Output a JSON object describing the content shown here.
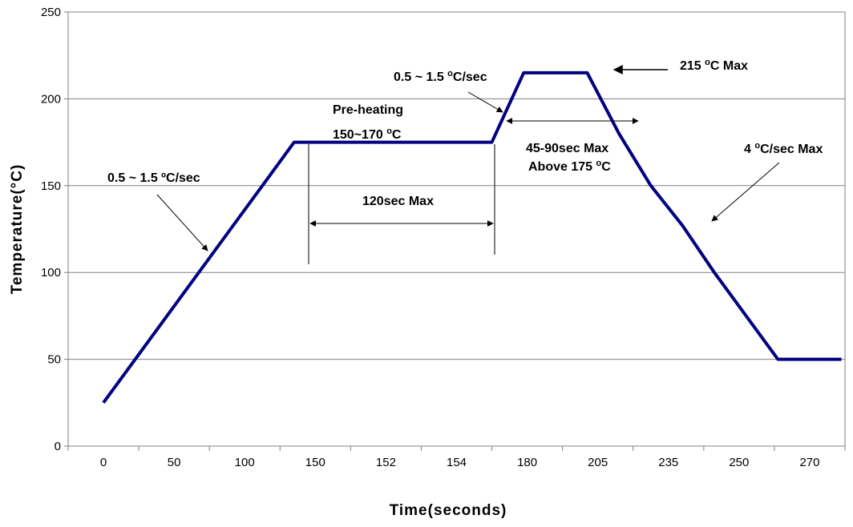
{
  "chart_data": {
    "type": "line",
    "title": "",
    "xlabel": "Time(seconds)",
    "ylabel": "Temperature(°C)",
    "ylim": [
      0,
      250
    ],
    "yticks": [
      0,
      50,
      100,
      150,
      200,
      250
    ],
    "xtick_labels": [
      "0",
      "50",
      "100",
      "150",
      "152",
      "154",
      "180",
      "205",
      "235",
      "250",
      "270"
    ],
    "grid": "horizontal",
    "line_color": "#000080",
    "series": [
      {
        "x": [
          0,
          0.45,
          0.9,
          1.35,
          1.8,
          2.25,
          2.7,
          3.15,
          5.5,
          5.95,
          6.4,
          6.85,
          7.3,
          7.75,
          8.2,
          8.65,
          9.1,
          9.55,
          10.0,
          10.45
        ],
        "values": [
          25,
          50,
          75,
          100,
          125,
          150,
          175,
          175,
          175,
          215,
          215,
          215,
          180,
          150,
          127,
          100,
          75,
          50,
          50,
          50
        ]
      }
    ],
    "annotations": {
      "ramp1": "0.5 ~ 1.5 ºC/sec",
      "preheat_line1": "Pre-heating",
      "preheat_line2_pre": "150~170 ",
      "preheat_sup": "o",
      "preheat_unit": "C",
      "duration": "120sec Max",
      "ramp2_pre": "0.5 ~ 1.5 ",
      "ramp2_sup": "o",
      "ramp2_unit": "C/sec",
      "peak_pre": "215 ",
      "peak_sup": "o",
      "peak_unit": "C Max",
      "reflow_line1": "45-90sec Max",
      "reflow_line2_pre": "Above 175 ",
      "reflow_sup": "o",
      "reflow_unit": "C",
      "cool_pre": "4 ",
      "cool_sup": "o",
      "cool_unit": "C/sec Max"
    }
  }
}
